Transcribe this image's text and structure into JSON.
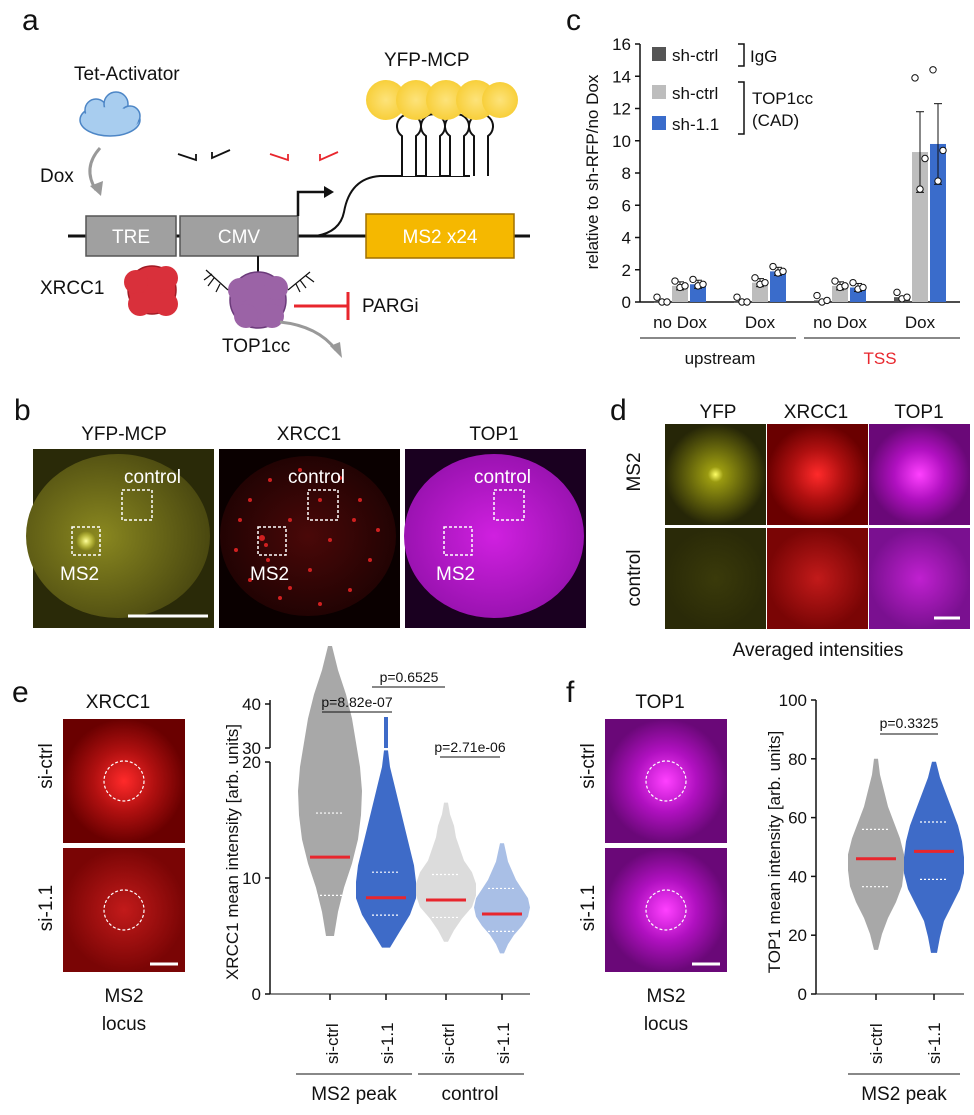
{
  "colors": {
    "ctrl_bar": "#bdbdbd",
    "igg_bar": "#555555",
    "sh11_bar": "#3a6ccb",
    "red": "#e8262d",
    "yfp": "#f3c436",
    "yellow_box": "#f5b800",
    "xrcc1": "#d9303b",
    "top1cc": "#9b63a6",
    "magenta": "#c000d0",
    "violin_grey": "#a8a8a8",
    "violin_light_grey": "#dcdcdc",
    "violin_blue": "#3e6bc8",
    "violin_light_blue": "#a9bfe6"
  },
  "panel_a": {
    "letter": "a",
    "tet_activator": "Tet-Activator",
    "dox": "Dox",
    "yfp_mcp": "YFP-MCP",
    "tre": "TRE",
    "cmv": "CMV",
    "ms2": "MS2 x24",
    "xrcc1": "XRCC1",
    "top1cc": "TOP1cc",
    "pargi": "PARGi"
  },
  "panel_b": {
    "letter": "b",
    "titles": [
      "YFP-MCP",
      "XRCC1",
      "TOP1"
    ],
    "control": "control",
    "ms2": "MS2"
  },
  "panel_c": {
    "letter": "c",
    "ylabel": "relative to sh-RFP/no Dox",
    "legend": [
      "sh-ctrl",
      "sh-ctrl",
      "sh-1.1"
    ],
    "legend_group1": "IgG",
    "legend_group2": [
      "TOP1cc",
      "(CAD)"
    ],
    "groups": [
      "no Dox",
      "Dox",
      "no Dox",
      "Dox"
    ],
    "regions": [
      "upstream",
      "TSS"
    ]
  },
  "panel_d": {
    "letter": "d",
    "titles": [
      "YFP",
      "XRCC1",
      "TOP1"
    ],
    "rows": [
      "MS2",
      "control"
    ],
    "caption": "Averaged intensities"
  },
  "panel_e": {
    "letter": "e",
    "title": "XRCC1",
    "rows": [
      "si-ctrl",
      "si-1.1"
    ],
    "locus": [
      "MS2",
      "locus"
    ],
    "ylabel": "XRCC1 mean intensity [arb. units]",
    "pvals": [
      "p=8.82e-07",
      "p=0.6525",
      "p=2.71e-06"
    ],
    "xticks": [
      "si-ctrl",
      "si-1.1",
      "si-ctrl",
      "si-1.1"
    ],
    "groups": [
      "MS2 peak",
      "control"
    ]
  },
  "panel_f": {
    "letter": "f",
    "title": "TOP1",
    "rows": [
      "si-ctrl",
      "si-1.1"
    ],
    "locus": [
      "MS2",
      "locus"
    ],
    "ylabel": "TOP1 mean intensity [arb. units]",
    "pval": "p=0.3325",
    "xticks": [
      "si-ctrl",
      "si-1.1"
    ],
    "group": "MS2 peak"
  },
  "chart_data": [
    {
      "type": "bar",
      "ylabel": "relative to sh-RFP/no Dox",
      "ylim": [
        0,
        16
      ],
      "yticks": [
        0,
        2,
        4,
        6,
        8,
        10,
        12,
        14,
        16
      ],
      "categories": [
        "upstream no Dox",
        "upstream Dox",
        "TSS no Dox",
        "TSS Dox"
      ],
      "series": [
        {
          "name": "sh-ctrl IgG",
          "values": [
            0.0,
            0.0,
            0.1,
            0.3
          ]
        },
        {
          "name": "sh-ctrl TOP1cc (CAD)",
          "values": [
            1.0,
            1.2,
            1.0,
            9.3
          ]
        },
        {
          "name": "sh-1.1 TOP1cc (CAD)",
          "values": [
            1.1,
            1.9,
            0.9,
            9.8
          ]
        }
      ]
    },
    {
      "type": "violin",
      "ylabel": "XRCC1 mean intensity [arb. units]",
      "yticks": [
        0,
        10,
        20,
        30,
        40
      ],
      "categories": [
        "si-ctrl",
        "si-1.1",
        "si-ctrl",
        "si-1.1"
      ],
      "groups": [
        "MS2 peak",
        "control"
      ],
      "medians": [
        11.8,
        8.3,
        8.1,
        6.9
      ],
      "pvalues": [
        "p=8.82e-07",
        "p=0.6525",
        "p=2.71e-06"
      ]
    },
    {
      "type": "violin",
      "ylabel": "TOP1 mean intensity [arb. units]",
      "ylim": [
        0,
        100
      ],
      "yticks": [
        0,
        20,
        40,
        60,
        80,
        100
      ],
      "categories": [
        "si-ctrl",
        "si-1.1"
      ],
      "groups": [
        "MS2 peak"
      ],
      "medians": [
        46,
        48.5
      ],
      "pvalues": [
        "p=0.3325"
      ]
    }
  ]
}
